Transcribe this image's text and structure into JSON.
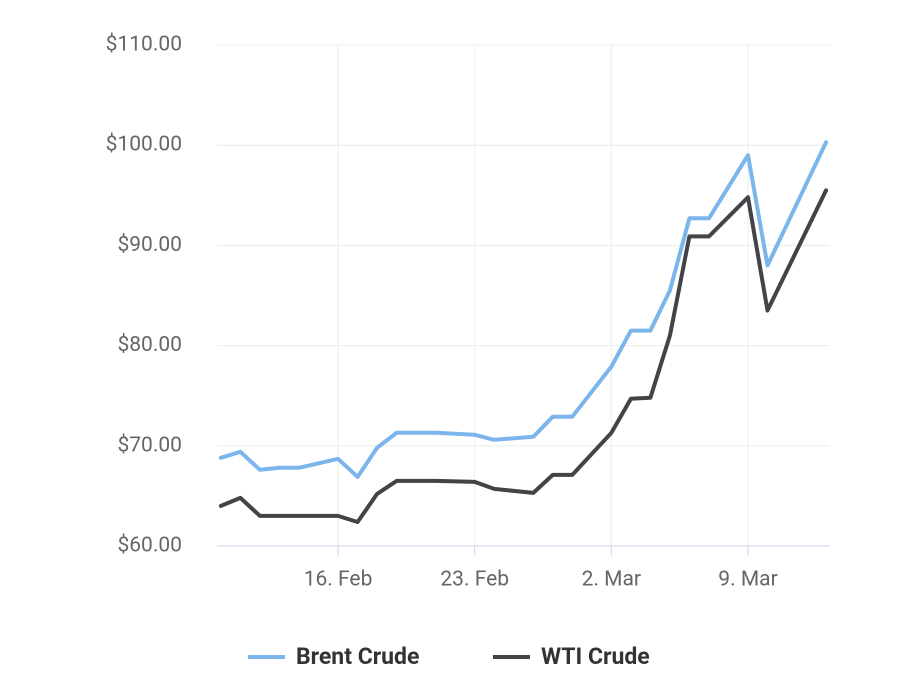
{
  "chart_data": {
    "type": "line",
    "x": [
      "10. Feb",
      "11. Feb",
      "12. Feb",
      "13. Feb",
      "14. Feb",
      "16. Feb",
      "17. Feb",
      "18. Feb",
      "19. Feb",
      "21. Feb",
      "23. Feb",
      "24. Feb",
      "26. Feb",
      "27. Feb",
      "28. Feb",
      "2. Mar",
      "3. Mar",
      "4. Mar",
      "5. Mar",
      "6. Mar",
      "7. Mar",
      "9. Mar",
      "10. Mar",
      "13. Mar"
    ],
    "series": [
      {
        "name": "Brent Crude",
        "color": "#7cb5ec",
        "values": [
          68.8,
          69.4,
          67.6,
          67.8,
          67.8,
          68.7,
          66.9,
          69.8,
          71.3,
          71.3,
          71.1,
          70.6,
          70.9,
          72.9,
          72.9,
          77.9,
          81.5,
          81.5,
          85.5,
          92.7,
          92.7,
          99.0,
          88.0,
          100.3
        ]
      },
      {
        "name": "WTI Crude",
        "color": "#434348",
        "values": [
          64.0,
          64.8,
          63.0,
          63.0,
          63.0,
          63.0,
          62.4,
          65.2,
          66.5,
          66.5,
          66.4,
          65.7,
          65.3,
          67.1,
          67.1,
          71.3,
          74.7,
          74.8,
          81.0,
          90.9,
          90.9,
          94.8,
          83.5,
          95.5
        ]
      }
    ],
    "xlim": [
      "10. Feb",
      "13. Mar"
    ],
    "xticks": [
      "16. Feb",
      "23. Feb",
      "2. Mar",
      "9. Mar"
    ],
    "ylim": [
      60,
      110
    ],
    "yticks": [
      {
        "value": 60,
        "label": "$60.00"
      },
      {
        "value": 70,
        "label": "$70.00"
      },
      {
        "value": 80,
        "label": "$80.00"
      },
      {
        "value": 90,
        "label": "$90.00"
      },
      {
        "value": 100,
        "label": "$100.00"
      },
      {
        "value": 110,
        "label": "$110.00"
      }
    ],
    "grid": true,
    "legend": "bottom"
  }
}
